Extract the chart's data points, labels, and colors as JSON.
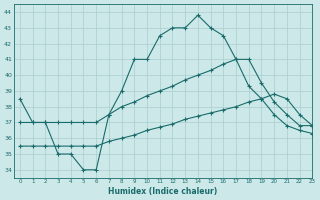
{
  "xlabel": "Humidex (Indice chaleur)",
  "xlim": [
    -0.5,
    23
  ],
  "ylim": [
    33.5,
    44.5
  ],
  "yticks": [
    34,
    35,
    36,
    37,
    38,
    39,
    40,
    41,
    42,
    43,
    44
  ],
  "xticks": [
    0,
    1,
    2,
    3,
    4,
    5,
    6,
    7,
    8,
    9,
    10,
    11,
    12,
    13,
    14,
    15,
    16,
    17,
    18,
    19,
    20,
    21,
    22,
    23
  ],
  "background_color": "#cce8e8",
  "grid_color": "#aacece",
  "line_color": "#1a6b6b",
  "lines": [
    {
      "x": [
        0,
        1,
        2,
        3,
        4,
        5,
        6,
        7,
        8,
        9,
        10,
        11,
        12,
        13,
        14,
        15,
        16,
        17,
        18,
        19,
        20,
        21,
        22,
        23
      ],
      "y": [
        38.5,
        37.0,
        37.0,
        35.0,
        35.0,
        34.0,
        34.0,
        37.5,
        39.0,
        41.0,
        41.0,
        42.5,
        43.0,
        43.0,
        43.8,
        43.0,
        42.5,
        41.0,
        41.0,
        39.5,
        38.3,
        37.5,
        36.8,
        36.8
      ]
    },
    {
      "x": [
        0,
        1,
        2,
        3,
        4,
        5,
        6,
        7,
        8,
        9,
        10,
        11,
        12,
        13,
        14,
        15,
        16,
        17,
        18,
        19,
        20,
        21,
        22,
        23
      ],
      "y": [
        37.0,
        37.0,
        37.0,
        37.0,
        37.0,
        37.0,
        37.0,
        37.5,
        38.0,
        38.3,
        38.7,
        39.0,
        39.3,
        39.7,
        40.0,
        40.3,
        40.7,
        41.0,
        39.3,
        38.5,
        37.5,
        36.8,
        36.5,
        36.3
      ]
    },
    {
      "x": [
        0,
        1,
        2,
        3,
        4,
        5,
        6,
        7,
        8,
        9,
        10,
        11,
        12,
        13,
        14,
        15,
        16,
        17,
        18,
        19,
        20,
        21,
        22,
        23
      ],
      "y": [
        35.5,
        35.5,
        35.5,
        35.5,
        35.5,
        35.5,
        35.5,
        35.8,
        36.0,
        36.2,
        36.5,
        36.7,
        36.9,
        37.2,
        37.4,
        37.6,
        37.8,
        38.0,
        38.3,
        38.5,
        38.8,
        38.5,
        37.5,
        36.8
      ]
    }
  ]
}
